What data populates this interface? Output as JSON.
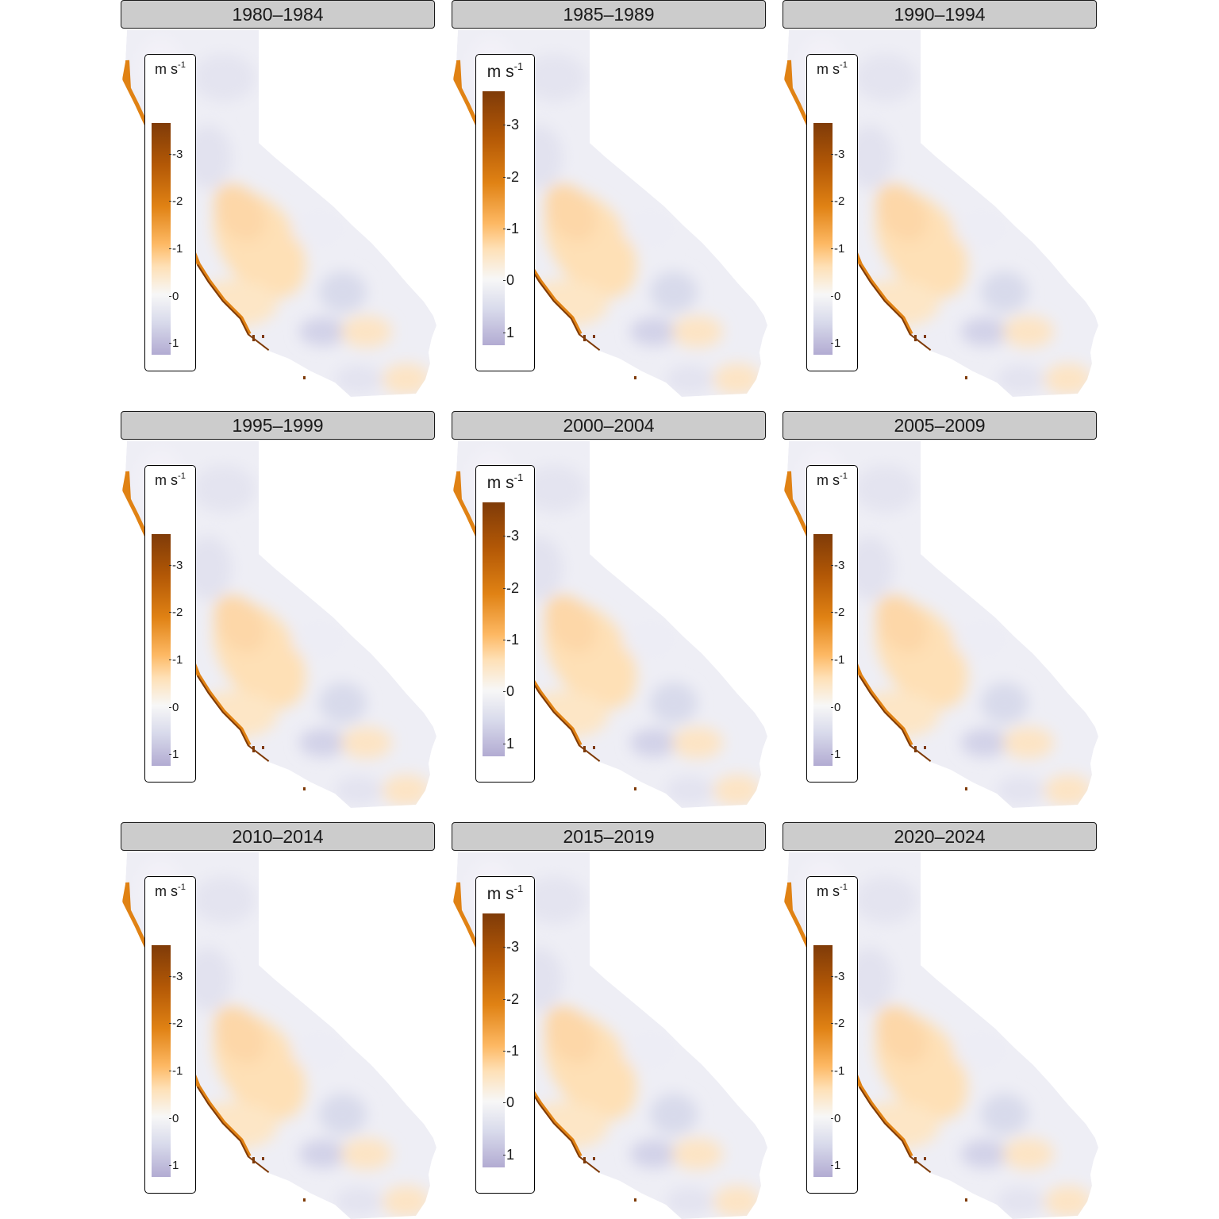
{
  "legend": {
    "unit": "m s",
    "unit_exponent": "-1",
    "tick_labels": [
      "-3",
      "-2",
      "-1",
      "0",
      "1"
    ],
    "tick_values": [
      -3,
      -2,
      -1,
      0,
      1
    ],
    "colors": {
      "max_negative": "#7f3b08",
      "orange": "#e08214",
      "light_orange": "#fdb863",
      "cream": "#fee0b6",
      "zero": "#f7f7f7",
      "light_purple": "#d8daeb",
      "purple": "#b2abd2"
    }
  },
  "panels": [
    {
      "title": "1980–1984",
      "legend_style": "small"
    },
    {
      "title": "1985–1989",
      "legend_style": "large"
    },
    {
      "title": "1990–1994",
      "legend_style": "small"
    },
    {
      "title": "1995–1999",
      "legend_style": "small"
    },
    {
      "title": "2000–2004",
      "legend_style": "large"
    },
    {
      "title": "2005–2009",
      "legend_style": "small"
    },
    {
      "title": "2010–2014",
      "legend_style": "small"
    },
    {
      "title": "2015–2019",
      "legend_style": "large"
    },
    {
      "title": "2020–2024",
      "legend_style": "small"
    }
  ]
}
